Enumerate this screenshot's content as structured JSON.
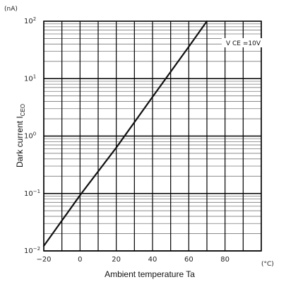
{
  "chart_data": {
    "type": "line",
    "xlabel": "Ambient temperature Ta",
    "ylabel_main": "Dark current I",
    "ylabel_sub": "CEO",
    "y_unit": "(nA)",
    "x_unit": "(°C)",
    "y_scale": "log",
    "xlim": [
      -20,
      100
    ],
    "ylim": [
      0.01,
      100
    ],
    "x_ticks": [
      {
        "value": -20,
        "label": "−20"
      },
      {
        "value": 0,
        "label": "0"
      },
      {
        "value": 20,
        "label": "20"
      },
      {
        "value": 40,
        "label": "40"
      },
      {
        "value": 60,
        "label": "60"
      },
      {
        "value": 80,
        "label": "80"
      }
    ],
    "y_ticks": [
      {
        "value": 100,
        "mantissa": "10",
        "exp": "2"
      },
      {
        "value": 10,
        "mantissa": "10",
        "exp": "1"
      },
      {
        "value": 1,
        "mantissa": "10",
        "exp": "0"
      },
      {
        "value": 0.1,
        "mantissa": "10",
        "exp": "−1"
      },
      {
        "value": 0.01,
        "mantissa": "10",
        "exp": "−2"
      }
    ],
    "grid": true,
    "series": [
      {
        "x": [
          -20,
          0,
          20,
          40,
          60,
          70
        ],
        "y": [
          0.0122,
          0.093,
          0.63,
          4.8,
          36,
          100
        ]
      }
    ],
    "annotation": "V CE =10V",
    "colors": {
      "line": "#111111",
      "grid": "#000000",
      "minor_grid": "#7a7a7a"
    }
  }
}
